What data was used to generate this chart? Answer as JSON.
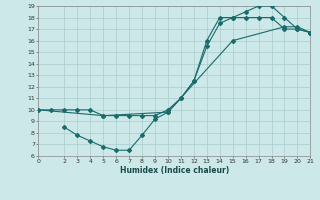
{
  "title": "",
  "xlabel": "Humidex (Indice chaleur)",
  "bg_color": "#cce8e8",
  "grid_color": "#aacccc",
  "line_color": "#1a6b6b",
  "xlim": [
    0,
    21
  ],
  "ylim": [
    6,
    19
  ],
  "xticks": [
    0,
    2,
    3,
    4,
    5,
    6,
    7,
    8,
    9,
    10,
    11,
    12,
    13,
    14,
    15,
    16,
    17,
    18,
    19,
    20,
    21
  ],
  "yticks": [
    6,
    7,
    8,
    9,
    10,
    11,
    12,
    13,
    14,
    15,
    16,
    17,
    18,
    19
  ],
  "curve1_x": [
    0,
    1,
    2,
    3,
    4,
    5,
    6,
    7,
    8,
    9,
    10,
    11,
    12,
    13,
    14,
    15,
    16,
    17,
    18,
    19,
    20,
    21
  ],
  "curve1_y": [
    10,
    10,
    10,
    10,
    10,
    9.5,
    9.5,
    9.5,
    9.5,
    9.5,
    10,
    11,
    12.5,
    15.5,
    17.5,
    18,
    18.5,
    19,
    19,
    18,
    17,
    16.7
  ],
  "curve2_x": [
    2,
    3,
    4,
    5,
    6,
    7,
    8,
    9,
    10,
    11,
    12,
    13,
    14,
    15,
    16,
    17,
    18,
    19,
    20,
    21
  ],
  "curve2_y": [
    8.5,
    7.8,
    7.3,
    6.8,
    6.5,
    6.5,
    7.8,
    9.2,
    9.8,
    11,
    12.5,
    16,
    18,
    18,
    18,
    18,
    18,
    17,
    17,
    16.7
  ],
  "curve3_x": [
    0,
    5,
    10,
    15,
    19,
    20,
    21
  ],
  "curve3_y": [
    10,
    9.5,
    9.8,
    16,
    17.2,
    17.2,
    16.7
  ],
  "tick_fontsize": 4.5,
  "xlabel_fontsize": 5.5
}
